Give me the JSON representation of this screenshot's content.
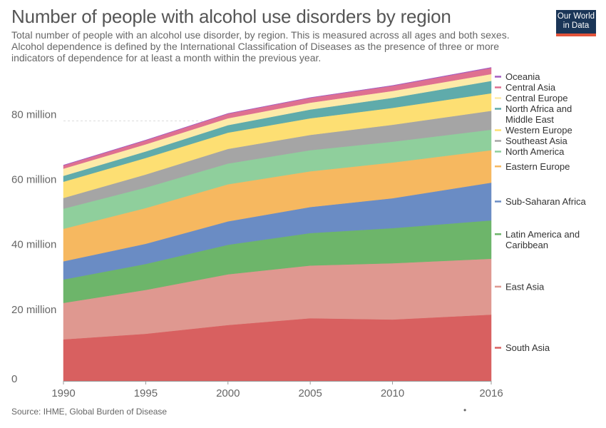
{
  "header": {
    "title": "Number of people with alcohol use disorders by region",
    "subtitle": "Total number of people with an alcohol use disorder, by region. This is measured across all ages and both sexes. Alcohol dependence is defined by the International Classification of Diseases as the presence of three or more indicators of dependence for at least a month within the previous year.",
    "logo_line1": "Our World",
    "logo_line2": "in Data"
  },
  "footer": {
    "source": "Source: IHME, Global Burden of Disease",
    "dot": "•"
  },
  "chart_data": {
    "type": "area",
    "stacked": true,
    "x": [
      1990,
      1995,
      2000,
      2005,
      2010,
      2016
    ],
    "x_ticks": [
      "1990",
      "1995",
      "2000",
      "2005",
      "2010",
      "2016"
    ],
    "y_ticks": [
      {
        "value": 0,
        "label": "0"
      },
      {
        "value": 20,
        "label": "20 million"
      },
      {
        "value": 40,
        "label": "40 million"
      },
      {
        "value": 60,
        "label": "60 million"
      },
      {
        "value": 80,
        "label": "80 million"
      }
    ],
    "ylim": [
      0,
      97
    ],
    "grid": "horizontal dashed",
    "legend_placement": "right",
    "series": [
      {
        "name": "South Asia",
        "label_lines": [
          "South Asia"
        ],
        "color": "#d86060",
        "values": [
          12.8,
          14.5,
          17.2,
          19.3,
          18.9,
          20.4
        ]
      },
      {
        "name": "East Asia",
        "label_lines": [
          "East Asia"
        ],
        "color": "#df9890",
        "values": [
          11.2,
          13.5,
          15.6,
          16.2,
          17.3,
          17.2
        ]
      },
      {
        "name": "Latin America and Caribbean",
        "label_lines": [
          "Latin America and",
          "Caribbean"
        ],
        "color": "#6db56a",
        "values": [
          7.2,
          8.0,
          9.1,
          10.0,
          10.8,
          11.8
        ]
      },
      {
        "name": "Sub-Saharan Africa",
        "label_lines": [
          "Sub-Saharan Africa"
        ],
        "color": "#6a8cc4",
        "values": [
          5.6,
          6.2,
          7.2,
          8.0,
          9.2,
          11.6
        ]
      },
      {
        "name": "Eastern Europe",
        "label_lines": [
          "Eastern Europe"
        ],
        "color": "#f6b860",
        "values": [
          10.0,
          11.0,
          11.4,
          11.0,
          11.0,
          10.0
        ]
      },
      {
        "name": "North America",
        "label_lines": [
          "North America"
        ],
        "color": "#8fcf9c",
        "values": [
          6.2,
          6.3,
          6.4,
          6.5,
          6.4,
          6.3
        ]
      },
      {
        "name": "Southeast Asia",
        "label_lines": [
          "Southeast Asia"
        ],
        "color": "#a5a5a5",
        "values": [
          3.3,
          4.0,
          4.5,
          4.7,
          5.2,
          5.8
        ]
      },
      {
        "name": "Western Europe",
        "label_lines": [
          "Western Europe"
        ],
        "color": "#fddf73",
        "values": [
          5.0,
          5.1,
          5.0,
          5.1,
          5.2,
          5.4
        ]
      },
      {
        "name": "North Africa and Middle East",
        "label_lines": [
          "North Africa and",
          "Middle East"
        ],
        "color": "#5fabab",
        "values": [
          1.8,
          2.0,
          2.3,
          2.7,
          3.1,
          3.8
        ]
      },
      {
        "name": "Central Europe",
        "label_lines": [
          "Central Europe"
        ],
        "color": "#fdeaa8",
        "values": [
          2.2,
          2.2,
          2.1,
          2.1,
          2.1,
          2.1
        ]
      },
      {
        "name": "Central Asia",
        "label_lines": [
          "Central Asia"
        ],
        "color": "#df7090",
        "values": [
          1.0,
          1.2,
          1.4,
          1.5,
          1.6,
          1.9
        ]
      },
      {
        "name": "Oceania",
        "label_lines": [
          "Oceania"
        ],
        "color": "#a35cc0",
        "values": [
          0.1,
          0.1,
          0.1,
          0.1,
          0.1,
          0.15
        ]
      }
    ]
  }
}
